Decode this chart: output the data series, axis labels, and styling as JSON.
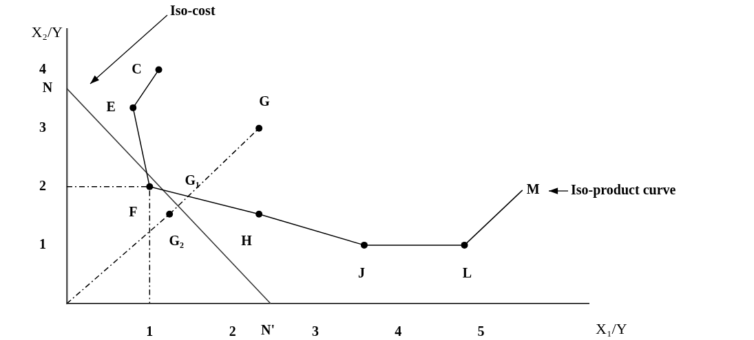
{
  "chart_data": {
    "type": "line",
    "xlabel": "X₁/Y",
    "ylabel": "X₂/Y",
    "xlim": [
      0,
      6.3
    ],
    "ylim": [
      0,
      4.7
    ],
    "xticks": [
      1,
      2,
      3,
      4,
      5
    ],
    "yticks": [
      1,
      2,
      3,
      4
    ],
    "grid": false,
    "legend": false,
    "series": [
      {
        "color": "#000000",
        "marker": "circle",
        "line_style": "solid",
        "x": [
          1.11,
          0.8,
          1,
          2.32,
          3.59,
          4.8
        ],
        "values": [
          4,
          3.35,
          2,
          1.53,
          1,
          1
        ]
      },
      {
        "color": "#000000",
        "marker": "none",
        "line_style": "solid",
        "x": [
          4.8,
          5.5
        ],
        "values": [
          1,
          1.94
        ]
      },
      {
        "color": "#333333",
        "marker": "none",
        "line_style": "solid",
        "x": [
          0,
          2.46
        ],
        "values": [
          3.68,
          0
        ]
      },
      {
        "color": "#000000",
        "marker": "none",
        "line_style": "dashed",
        "x": [
          0,
          1.24,
          2.32
        ],
        "values": [
          0,
          1.53,
          3
        ]
      },
      {
        "color": "#000000",
        "marker": "none",
        "line_style": "dashed",
        "x": [
          0,
          1,
          1
        ],
        "values": [
          2,
          2,
          0
        ]
      },
      {
        "type": "scatter",
        "color": "#000000",
        "marker": "circle",
        "x": [
          1.24,
          2.32
        ],
        "values": [
          1.53,
          3
        ]
      }
    ],
    "annotations": [
      {
        "text": "C",
        "x": 1.11,
        "y": 4
      },
      {
        "text": "E",
        "x": 0.8,
        "y": 3.35
      },
      {
        "text": "F",
        "x": 1,
        "y": 2
      },
      {
        "text": "G₁",
        "x": 1,
        "y": 2
      },
      {
        "text": "G₂",
        "x": 1.24,
        "y": 1.53
      },
      {
        "text": "G",
        "x": 2.32,
        "y": 3
      },
      {
        "text": "H",
        "x": 2.32,
        "y": 1.53
      },
      {
        "text": "J",
        "x": 3.59,
        "y": 1
      },
      {
        "text": "L",
        "x": 4.8,
        "y": 1
      },
      {
        "text": "M",
        "x": 5.5,
        "y": 1.94
      },
      {
        "text": "N",
        "x": 0,
        "y": 3.68
      },
      {
        "text": "N'",
        "x": 2.46,
        "y": 0
      },
      "Iso-cost",
      "Iso-product curve"
    ]
  }
}
